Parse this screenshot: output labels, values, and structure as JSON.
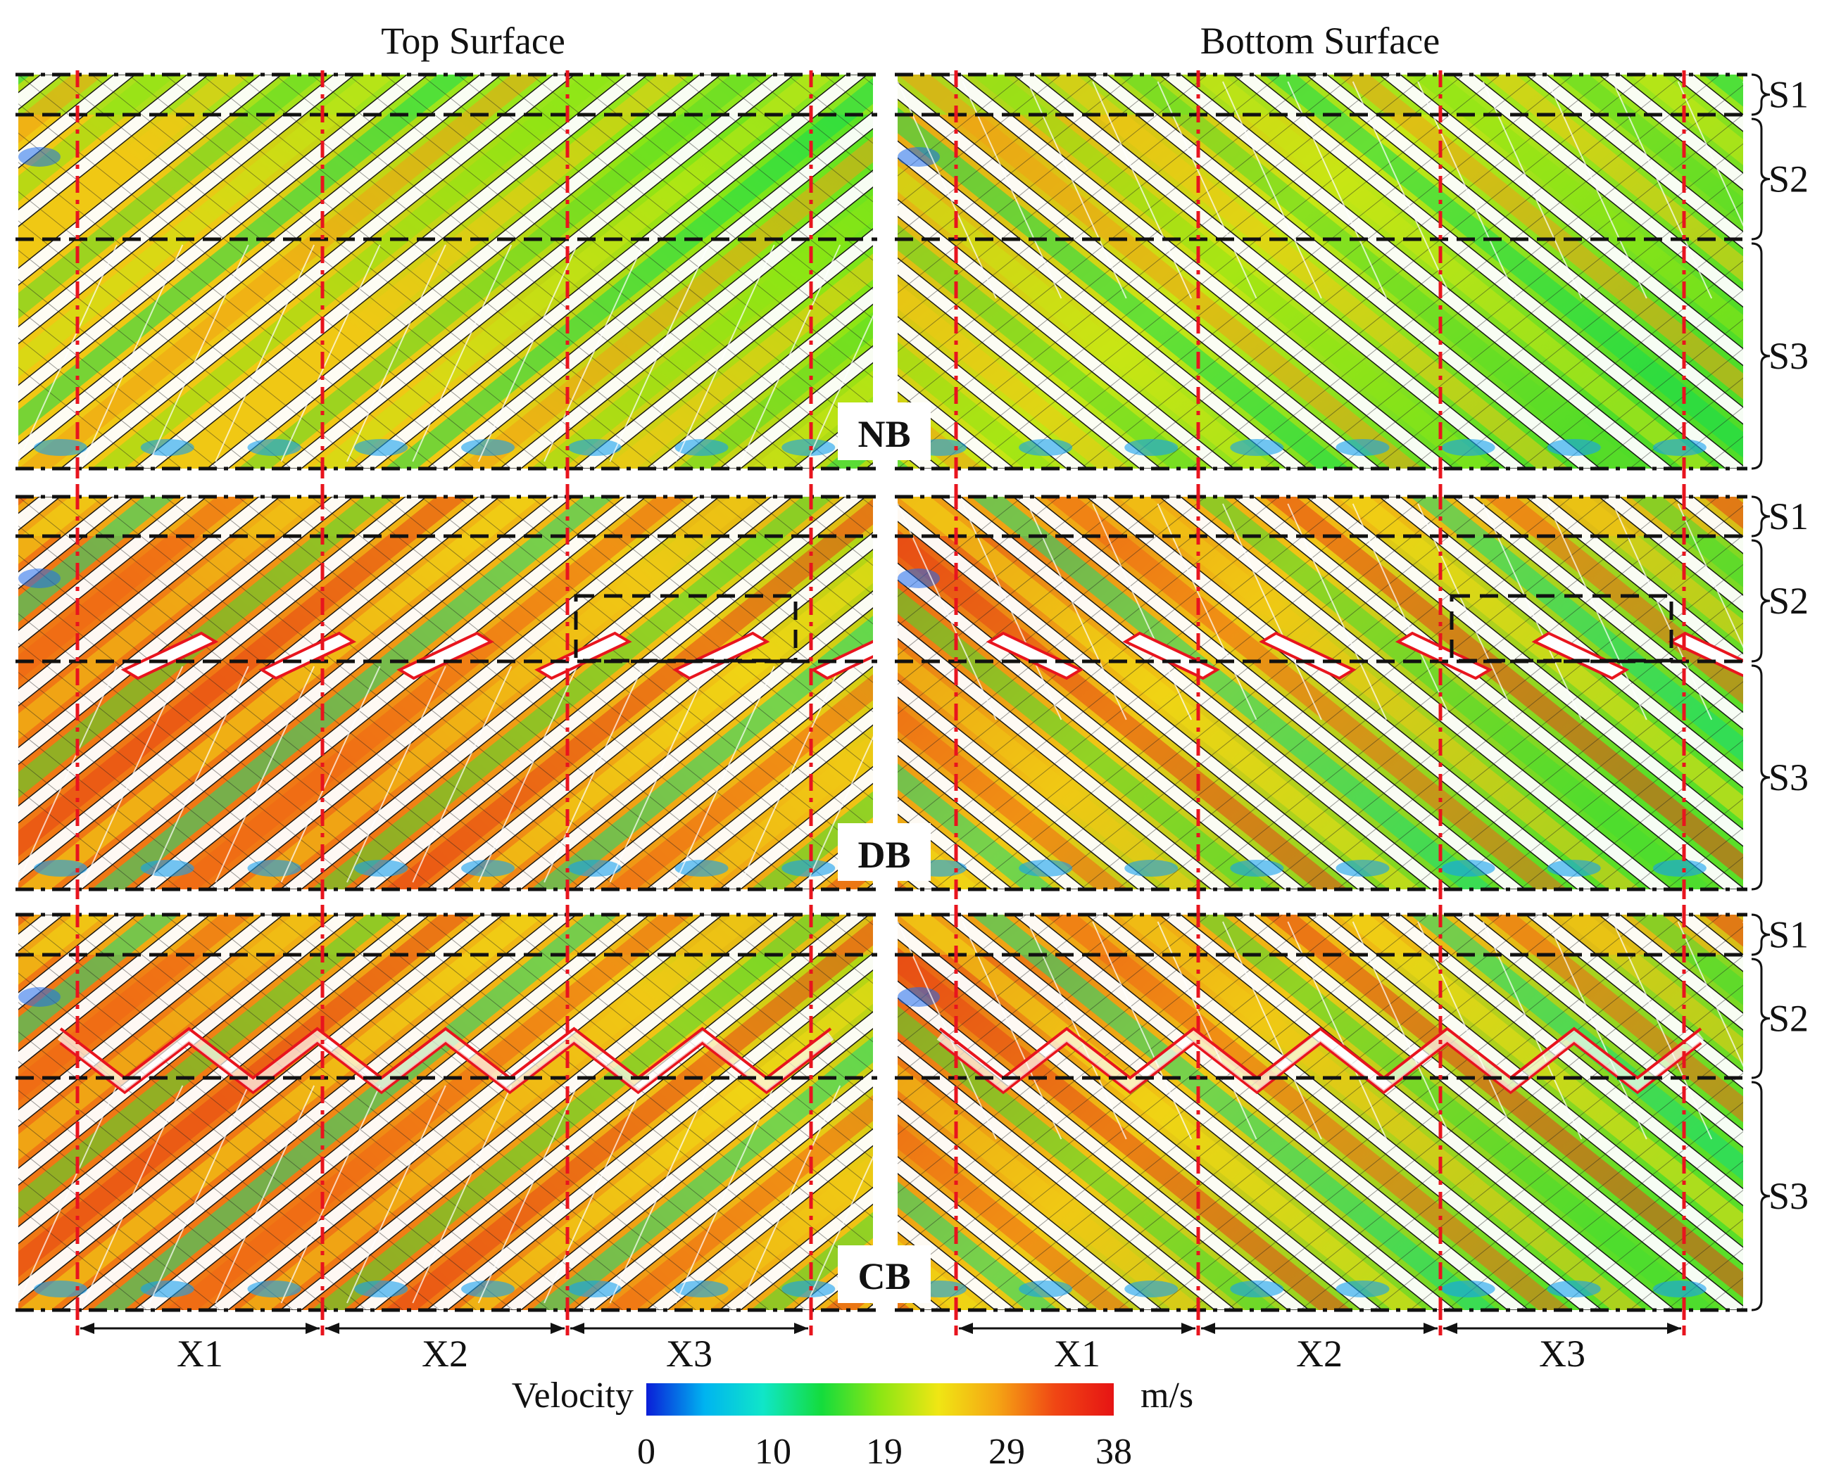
{
  "titles": {
    "top": "Top Surface",
    "bottom": "Bottom Surface"
  },
  "cases": [
    {
      "id": "NB",
      "label": "NB"
    },
    {
      "id": "DB",
      "label": "DB"
    },
    {
      "id": "CB",
      "label": "CB"
    }
  ],
  "segments": [
    "S1",
    "S2",
    "S3"
  ],
  "x_regions": [
    "X1",
    "X2",
    "X3"
  ],
  "legend": {
    "label": "Velocity",
    "unit": "m/s",
    "ticks": [
      "0",
      "10",
      "19",
      "29",
      "38"
    ],
    "min": 0,
    "max": 38
  },
  "colors": {
    "velocity_map": [
      "#0a1ed8",
      "#00b4f0",
      "#10e6c8",
      "#14dc3c",
      "#8ce614",
      "#f0e614",
      "#f5a514",
      "#f04614",
      "#e61414"
    ],
    "red_dash": "#e8141e",
    "black_dash": "#111111",
    "blade": "#e8141e"
  }
}
